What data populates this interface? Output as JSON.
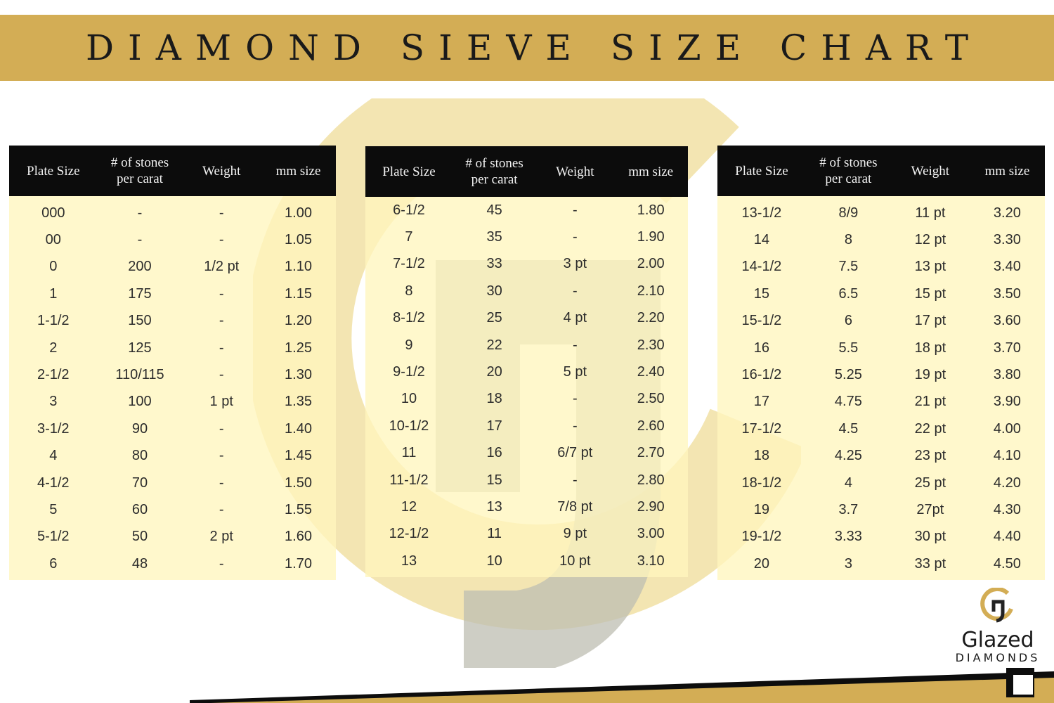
{
  "title": "DIAMOND SIEVE SIZE CHART",
  "headers": {
    "plate": "Plate Size",
    "stones_line1": "# of stones",
    "stones_line2": "per carat",
    "weight": "Weight",
    "mm": "mm size"
  },
  "tables": [
    {
      "rows": [
        [
          "000",
          "-",
          "-",
          "1.00"
        ],
        [
          "00",
          "-",
          "-",
          "1.05"
        ],
        [
          "0",
          "200",
          "1/2 pt",
          "1.10"
        ],
        [
          "1",
          "175",
          "-",
          "1.15"
        ],
        [
          "1-1/2",
          "150",
          "-",
          "1.20"
        ],
        [
          "2",
          "125",
          "-",
          "1.25"
        ],
        [
          "2-1/2",
          "110/115",
          "-",
          "1.30"
        ],
        [
          "3",
          "100",
          "1 pt",
          "1.35"
        ],
        [
          "3-1/2",
          "90",
          "-",
          "1.40"
        ],
        [
          "4",
          "80",
          "-",
          "1.45"
        ],
        [
          "4-1/2",
          "70",
          "-",
          "1.50"
        ],
        [
          "5",
          "60",
          "-",
          "1.55"
        ],
        [
          "5-1/2",
          "50",
          "2 pt",
          "1.60"
        ],
        [
          "6",
          "48",
          "-",
          "1.70"
        ]
      ]
    },
    {
      "rows": [
        [
          "6-1/2",
          "45",
          "-",
          "1.80"
        ],
        [
          "7",
          "35",
          "-",
          "1.90"
        ],
        [
          "7-1/2",
          "33",
          "3 pt",
          "2.00"
        ],
        [
          "8",
          "30",
          "-",
          "2.10"
        ],
        [
          "8-1/2",
          "25",
          "4 pt",
          "2.20"
        ],
        [
          "9",
          "22",
          "-",
          "2.30"
        ],
        [
          "9-1/2",
          "20",
          "5 pt",
          "2.40"
        ],
        [
          "10",
          "18",
          "-",
          "2.50"
        ],
        [
          "10-1/2",
          "17",
          "-",
          "2.60"
        ],
        [
          "11",
          "16",
          "6/7 pt",
          "2.70"
        ],
        [
          "11-1/2",
          "15",
          "-",
          "2.80"
        ],
        [
          "12",
          "13",
          "7/8 pt",
          "2.90"
        ],
        [
          "12-1/2",
          "11",
          "9 pt",
          "3.00"
        ],
        [
          "13",
          "10",
          "10 pt",
          "3.10"
        ]
      ]
    },
    {
      "rows": [
        [
          "13-1/2",
          "8/9",
          "11 pt",
          "3.20"
        ],
        [
          "14",
          "8",
          "12 pt",
          "3.30"
        ],
        [
          "14-1/2",
          "7.5",
          "13 pt",
          "3.40"
        ],
        [
          "15",
          "6.5",
          "15 pt",
          "3.50"
        ],
        [
          "15-1/2",
          "6",
          "17 pt",
          "3.60"
        ],
        [
          "16",
          "5.5",
          "18 pt",
          "3.70"
        ],
        [
          "16-1/2",
          "5.25",
          "19 pt",
          "3.80"
        ],
        [
          "17",
          "4.75",
          "21 pt",
          "3.90"
        ],
        [
          "17-1/2",
          "4.5",
          "22 pt",
          "4.00"
        ],
        [
          "18",
          "4.25",
          "23 pt",
          "4.10"
        ],
        [
          "18-1/2",
          "4",
          "25 pt",
          "4.20"
        ],
        [
          "19",
          "3.7",
          "27pt",
          "4.30"
        ],
        [
          "19-1/2",
          "3.33",
          "30 pt",
          "4.40"
        ],
        [
          "20",
          "3",
          "33 pt",
          "4.50"
        ]
      ]
    }
  ],
  "logo": {
    "name": "Glazed",
    "sub": "DIAMONDS",
    "icon": "glazed-g-logo-icon"
  },
  "colors": {
    "gold": "#d3ad55",
    "header_bg": "#0c0c0c",
    "row_bg": "#fff6be"
  }
}
